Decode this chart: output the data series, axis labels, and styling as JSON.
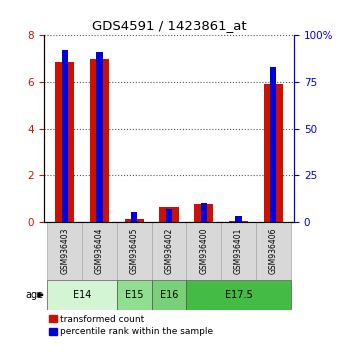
{
  "title": "GDS4591 / 1423861_at",
  "samples": [
    "GSM936403",
    "GSM936404",
    "GSM936405",
    "GSM936402",
    "GSM936400",
    "GSM936401",
    "GSM936406"
  ],
  "red_values": [
    6.85,
    7.0,
    0.1,
    0.65,
    0.75,
    0.05,
    5.9
  ],
  "blue_values": [
    92,
    91,
    5,
    7,
    10,
    3,
    83
  ],
  "age_groups": [
    {
      "label": "E14",
      "start": 0,
      "end": 2,
      "color": "#d4f5d4"
    },
    {
      "label": "E15",
      "start": 2,
      "end": 3,
      "color": "#90de90"
    },
    {
      "label": "E16",
      "start": 3,
      "end": 4,
      "color": "#78d078"
    },
    {
      "label": "E17.5",
      "start": 4,
      "end": 7,
      "color": "#44bb44"
    }
  ],
  "red_color": "#cc1100",
  "blue_color": "#0000dd",
  "ylim_left": [
    0,
    8
  ],
  "ylim_right": [
    0,
    100
  ],
  "yticks_left": [
    0,
    2,
    4,
    6,
    8
  ],
  "yticks_right": [
    0,
    25,
    50,
    75,
    100
  ],
  "red_bar_width": 0.55,
  "blue_bar_width": 0.18,
  "bg_color": "#ffffff",
  "panel_bg": "#d8d8d8",
  "legend_labels": [
    "transformed count",
    "percentile rank within the sample"
  ]
}
